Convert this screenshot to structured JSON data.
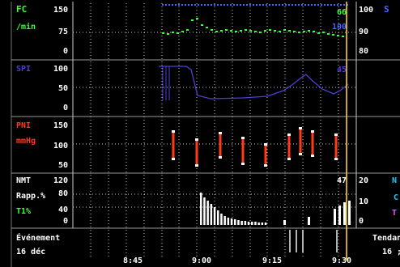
{
  "panels": {
    "fc": {
      "label_line1": "FC",
      "label_line2": "/min",
      "ticks_left": [
        "150",
        "75",
        "0"
      ],
      "ticks_right": [
        "100",
        "90",
        "80"
      ],
      "right_label": "S",
      "value_green": "66",
      "value_blue": "100",
      "color_label": "#39ff39",
      "color_spo2": "#4a64ff"
    },
    "spi": {
      "label": "SPI",
      "ticks_left": [
        "100",
        "50",
        "0"
      ],
      "value": "45",
      "color": "#4e3fd8"
    },
    "pni": {
      "label_line1": "PNI",
      "label_line2": "mmHg",
      "ticks_left": [
        "150",
        "100",
        "50"
      ],
      "color": "#ff3b1a"
    },
    "nmt": {
      "label_line1": "NMT",
      "label_line2": "Rapp.%",
      "label_line3": "T1%",
      "ticks_left": [
        "120",
        "80",
        "40",
        "0"
      ],
      "ticks_right": [
        "20",
        "10",
        "0"
      ],
      "value": "47",
      "right_label_n": "N",
      "right_label_c": "C",
      "right_label_t": "T",
      "color_t1": "#39ff39",
      "color_n": "#1ec8ff",
      "color_t": "#ff4df5"
    }
  },
  "footer": {
    "events_label": "Événement",
    "date_label": "16 déc",
    "trend_label": "Tendan",
    "trend_sub": "16 ;",
    "times": [
      "8:45",
      "9:00",
      "9:15",
      "9:30"
    ]
  },
  "colors": {
    "background": "#000000",
    "grid": "#c8c8c8",
    "cursor": "#ffd21e",
    "text": "#ffffff"
  }
}
